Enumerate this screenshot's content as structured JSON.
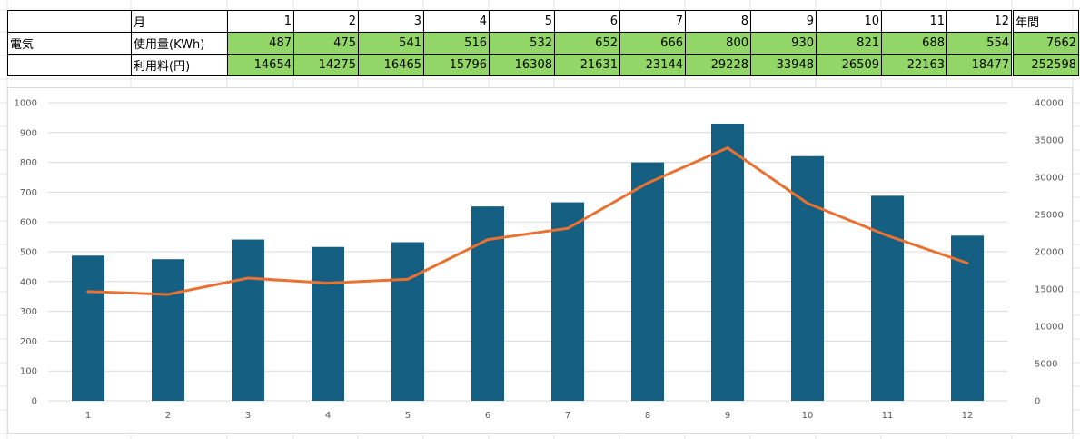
{
  "table": {
    "header_label": "月",
    "months": [
      "1",
      "2",
      "3",
      "4",
      "5",
      "6",
      "7",
      "8",
      "9",
      "10",
      "11",
      "12"
    ],
    "total_label": "年間",
    "rows": [
      {
        "group": "電気",
        "label": "使用量(KWh)",
        "values": [
          "487",
          "475",
          "541",
          "516",
          "532",
          "652",
          "666",
          "800",
          "930",
          "821",
          "688",
          "554"
        ],
        "total": "7662"
      },
      {
        "group": "",
        "label": "利用料(円)",
        "values": [
          "14654",
          "14275",
          "16465",
          "15796",
          "16308",
          "21631",
          "23144",
          "29228",
          "33948",
          "26509",
          "22163",
          "18477"
        ],
        "total": "252598"
      }
    ]
  },
  "chart_data": {
    "type": "bar",
    "categories": [
      "1",
      "2",
      "3",
      "4",
      "5",
      "6",
      "7",
      "8",
      "9",
      "10",
      "11",
      "12"
    ],
    "series": [
      {
        "type": "bar",
        "axis": "left",
        "values": [
          487,
          475,
          541,
          516,
          532,
          652,
          666,
          800,
          930,
          821,
          688,
          554
        ],
        "color": "#156082"
      },
      {
        "type": "line",
        "axis": "right",
        "values": [
          14654,
          14275,
          16465,
          15796,
          16308,
          21631,
          23144,
          29228,
          33948,
          26509,
          22163,
          18477
        ],
        "color": "#e97132"
      }
    ],
    "ylim": [
      0,
      1000
    ],
    "y_ticks": [
      "0",
      "100",
      "200",
      "300",
      "400",
      "500",
      "600",
      "700",
      "800",
      "900",
      "1000"
    ],
    "y2lim": [
      0,
      40000
    ],
    "y2_ticks": [
      "0",
      "5000",
      "10000",
      "15000",
      "20000",
      "25000",
      "30000",
      "35000",
      "40000"
    ],
    "grid": true,
    "legend": "none"
  }
}
